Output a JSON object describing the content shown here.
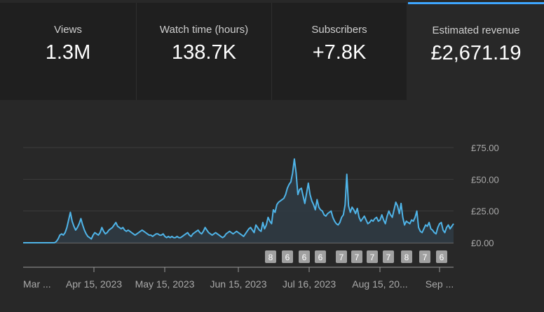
{
  "metrics": [
    {
      "label": "Views",
      "value": "1.3M"
    },
    {
      "label": "Watch time (hours)",
      "value": "138.7K"
    },
    {
      "label": "Subscribers",
      "value": "+7.8K"
    },
    {
      "label": "Estimated revenue",
      "value": "£2,671.19",
      "selected": true
    }
  ],
  "colors": {
    "accent": "#3ea6ff",
    "line": "#4fb4e8",
    "fill": "#2f3b44",
    "grid": "#3d3d3d",
    "badge": "#a0a0a0"
  },
  "chart_data": {
    "type": "area",
    "title": "Estimated revenue",
    "ylim": [
      0,
      75
    ],
    "y_ticks": [
      "£75.00",
      "£50.00",
      "£25.00",
      "£0.00"
    ],
    "x_ticks": [
      "Mar ...",
      "Apr 15, 2023",
      "May 15, 2023",
      "Jun 15, 2023",
      "Jul 16, 2023",
      "Aug 15, 20...",
      "Sep ..."
    ],
    "series": [
      {
        "name": "Estimated revenue (£)",
        "values": [
          0,
          0,
          0,
          0,
          0,
          0,
          0,
          0,
          0,
          0,
          0,
          0,
          0,
          0,
          0,
          0,
          0,
          0,
          0,
          1,
          3,
          6,
          7,
          6,
          8,
          12,
          18,
          24,
          17,
          13,
          10,
          12,
          15,
          19,
          14,
          10,
          7,
          5,
          4,
          3,
          6,
          8,
          7,
          6,
          8,
          12,
          9,
          7,
          8,
          10,
          11,
          12,
          14,
          16,
          13,
          12,
          11,
          12,
          10,
          9,
          10,
          9,
          8,
          7,
          6,
          7,
          8,
          9,
          10,
          9,
          8,
          7,
          6,
          6,
          5,
          6,
          7,
          7,
          6,
          6,
          7,
          5,
          4,
          5,
          4,
          5,
          4,
          4,
          5,
          4,
          4,
          5,
          6,
          7,
          8,
          6,
          5,
          7,
          8,
          9,
          10,
          8,
          7,
          9,
          12,
          10,
          8,
          7,
          6,
          7,
          8,
          7,
          6,
          5,
          4,
          5,
          7,
          8,
          9,
          8,
          7,
          8,
          9,
          8,
          7,
          6,
          5,
          7,
          9,
          11,
          12,
          10,
          8,
          14,
          12,
          10,
          9,
          16,
          11,
          14,
          20,
          17,
          15,
          26,
          24,
          30,
          32,
          33,
          34,
          35,
          38,
          43,
          46,
          48,
          55,
          66,
          55,
          38,
          42,
          43,
          37,
          31,
          39,
          47,
          38,
          33,
          30,
          26,
          34,
          28,
          26,
          25,
          22,
          21,
          23,
          24,
          25,
          20,
          17,
          15,
          14,
          16,
          20,
          22,
          30,
          54,
          29,
          24,
          28,
          26,
          23,
          27,
          20,
          17,
          19,
          21,
          18,
          15,
          16,
          18,
          17,
          19,
          20,
          17,
          18,
          22,
          18,
          15,
          21,
          25,
          22,
          20,
          26,
          32,
          29,
          23,
          31,
          20,
          14,
          17,
          16,
          15,
          18,
          17,
          20,
          25,
          12,
          9,
          8,
          11,
          14,
          13,
          16,
          11,
          10,
          8,
          7,
          12,
          15,
          16,
          10,
          8,
          12,
          14,
          11,
          13,
          15
        ],
        "peak_badges": [
          "8",
          "6",
          "6",
          "6",
          "7",
          "7",
          "7",
          "7",
          "8",
          "7",
          "6"
        ]
      }
    ]
  }
}
